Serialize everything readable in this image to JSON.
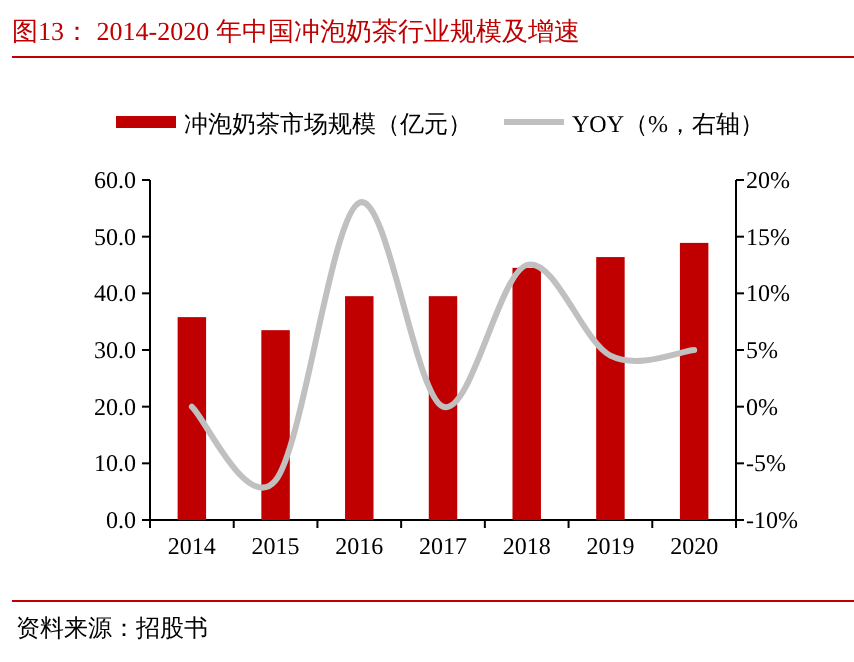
{
  "chart_data": {
    "type": "bar",
    "title": "图13：  2014-2020 年中国冲泡奶茶行业规模及增速",
    "categories": [
      "2014",
      "2015",
      "2016",
      "2017",
      "2018",
      "2019",
      "2020"
    ],
    "series": [
      {
        "name": "冲泡奶茶市场规模（亿元）",
        "color": "#c00000",
        "values": [
          35.8,
          33.5,
          39.5,
          39.5,
          44.5,
          46.4,
          48.9
        ]
      },
      {
        "name": "YOY（%，右轴）",
        "type": "line",
        "axis": "y2",
        "color": "#c0c0c0",
        "values": [
          0,
          -6.5,
          18,
          0,
          12.5,
          4.5,
          5
        ]
      }
    ],
    "ylim": [
      0,
      60
    ],
    "yticks": [
      {
        "value": 0,
        "label": "0.0"
      },
      {
        "value": 10,
        "label": "10.0"
      },
      {
        "value": 20,
        "label": "20.0"
      },
      {
        "value": 30,
        "label": "30.0"
      },
      {
        "value": 40,
        "label": "40.0"
      },
      {
        "value": 50,
        "label": "50.0"
      },
      {
        "value": 60,
        "label": "60.0"
      }
    ],
    "y2lim": [
      -10,
      20
    ],
    "y2ticks": [
      {
        "value": -10,
        "label": "-10%"
      },
      {
        "value": -5,
        "label": "-5%"
      },
      {
        "value": 0,
        "label": "0%"
      },
      {
        "value": 5,
        "label": "5%"
      },
      {
        "value": 10,
        "label": "10%"
      },
      {
        "value": 15,
        "label": "15%"
      },
      {
        "value": 20,
        "label": "20%"
      }
    ],
    "legend": "top",
    "grid": false,
    "annotations": [
      "资料来源：招股书"
    ]
  }
}
